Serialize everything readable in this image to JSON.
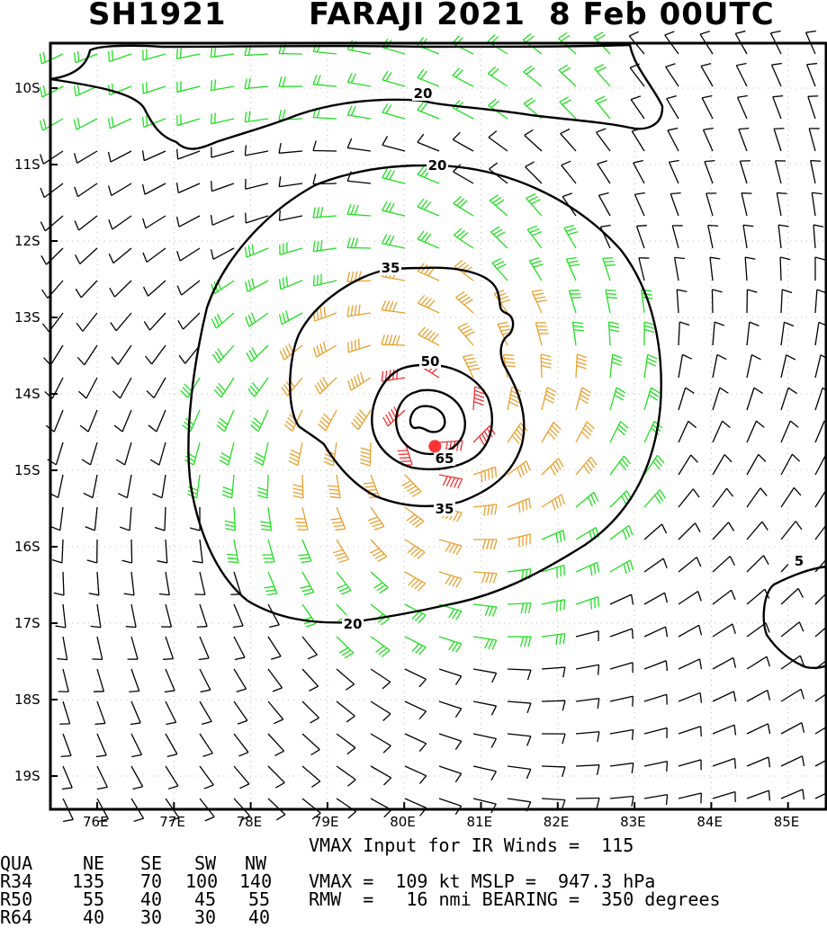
{
  "title": {
    "storm_id": "SH1921",
    "storm_name": "FARAJI 2021",
    "date_time": "8 Feb 00UTC"
  },
  "map": {
    "lat_labels": [
      "10S",
      "11S",
      "12S",
      "13S",
      "14S",
      "15S",
      "16S",
      "17S",
      "18S",
      "19S"
    ],
    "lon_labels": [
      "76E",
      "77E",
      "78E",
      "79E",
      "80E",
      "81E",
      "82E",
      "83E",
      "84E",
      "85E"
    ],
    "contour_labels": [
      "20",
      "20",
      "35",
      "50",
      "65",
      "35",
      "20",
      "5"
    ],
    "center": {
      "lat": -14.45,
      "lon": 80.4
    },
    "colors": {
      "black_barbs": "#000000",
      "green_barbs": "#22dd22",
      "orange_barbs": "#e8a030",
      "red_barbs": "#ee3333",
      "center_marker": "#ff3333"
    }
  },
  "wind_radii": {
    "header": [
      "QUA",
      "NE",
      "SE",
      "SW",
      "NW"
    ],
    "rows": [
      {
        "label": "R34",
        "values": [
          "135",
          "70",
          "100",
          "140"
        ]
      },
      {
        "label": "R50",
        "values": [
          "55",
          "40",
          "45",
          "55"
        ]
      },
      {
        "label": "R64",
        "values": [
          "40",
          "30",
          "30",
          "40"
        ]
      }
    ]
  },
  "summary": {
    "vmax_input": "VMAX Input for IR Winds =  115",
    "vmax_mslp": "VMAX =  109 kt MSLP =  947.3 hPa",
    "rmw_bearing": "RMW  =   16 nmi BEARING =  350 degrees"
  }
}
